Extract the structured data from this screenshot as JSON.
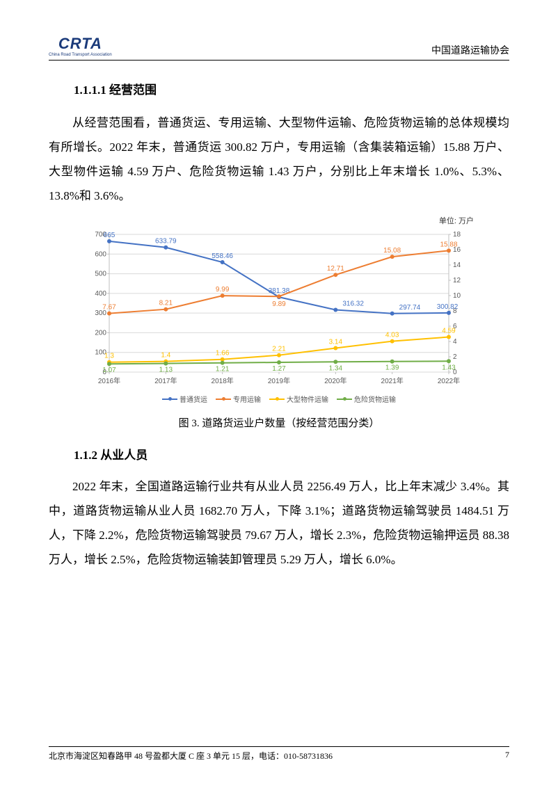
{
  "header": {
    "logo_text": "CRTA",
    "logo_sub": "China Road Transport Association",
    "org_name": "中国道路运输协会"
  },
  "section1": {
    "number": "1.1.1.1",
    "title": "经营范围"
  },
  "paragraph1": "从经营范围看，普通货运、专用运输、大型物件运输、危险货物运输的总体规模均有所增长。2022 年末，普通货运 300.82 万户，专用运输（含集装箱运输）15.88 万户、大型物件运输 4.59 万户、危险货物运输 1.43 万户，分别比上年末增长 1.0%、5.3%、13.8%和 3.6%。",
  "chart": {
    "unit_label": "单位: 万户",
    "categories": [
      "2016年",
      "2017年",
      "2018年",
      "2019年",
      "2020年",
      "2021年",
      "2022年"
    ],
    "left_axis": {
      "min": 0,
      "max": 700,
      "step": 100
    },
    "right_axis": {
      "min": 0,
      "max": 18,
      "step": 2
    },
    "series": [
      {
        "name": "普通货运",
        "axis": "left",
        "color": "#4472c4",
        "values": [
          665,
          633.79,
          558.46,
          381.38,
          316.32,
          297.74,
          300.82
        ],
        "labels": [
          "665",
          "633.79",
          "558.46",
          "381.38",
          "316.32",
          "297.74",
          "300.82"
        ]
      },
      {
        "name": "专用运输",
        "axis": "right",
        "color": "#ed7d31",
        "values": [
          7.67,
          8.21,
          9.99,
          9.89,
          12.71,
          15.08,
          15.88
        ],
        "labels": [
          "7.67",
          "8.21",
          "9.99",
          "9.89",
          "12.71",
          "15.08",
          "15.88"
        ]
      },
      {
        "name": "大型物件运输",
        "axis": "right",
        "color": "#ffc000",
        "values": [
          1.3,
          1.4,
          1.66,
          2.21,
          3.14,
          4.03,
          4.59
        ],
        "labels": [
          "1.3",
          "1.4",
          "1.66",
          "2.21",
          "3.14",
          "4.03",
          "4.59"
        ]
      },
      {
        "name": "危险货物运输",
        "axis": "right",
        "color": "#70ad47",
        "values": [
          1.07,
          1.13,
          1.21,
          1.27,
          1.34,
          1.39,
          1.43
        ],
        "labels": [
          "1.07",
          "1.13",
          "1.21",
          "1.27",
          "1.34",
          "1.39",
          "1.43"
        ]
      }
    ],
    "caption": "图 3. 道路货运业户数量（按经营范围分类）",
    "grid_color": "#d9d9d9",
    "axis_color": "#bfbfbf",
    "line_width": 2,
    "marker_radius": 3
  },
  "section2": {
    "number": "1.1.2",
    "title": "从业人员"
  },
  "paragraph2": "2022 年末，全国道路运输行业共有从业人员 2256.49 万人，比上年末减少 3.4%。其中，道路货物运输从业人员 1682.70 万人，下降 3.1%；道路货物运输驾驶员 1484.51 万人，下降 2.2%，危险货物运输驾驶员 79.67 万人，增长 2.3%，危险货物运输押运员 88.38 万人，增长 2.5%，危险货物运输装卸管理员 5.29 万人，增长 6.0%。",
  "footer": {
    "address": "北京市海淀区知春路甲 48 号盈都大厦 C 座 3 单元 15 层，电话：010-58731836",
    "page": "7"
  }
}
